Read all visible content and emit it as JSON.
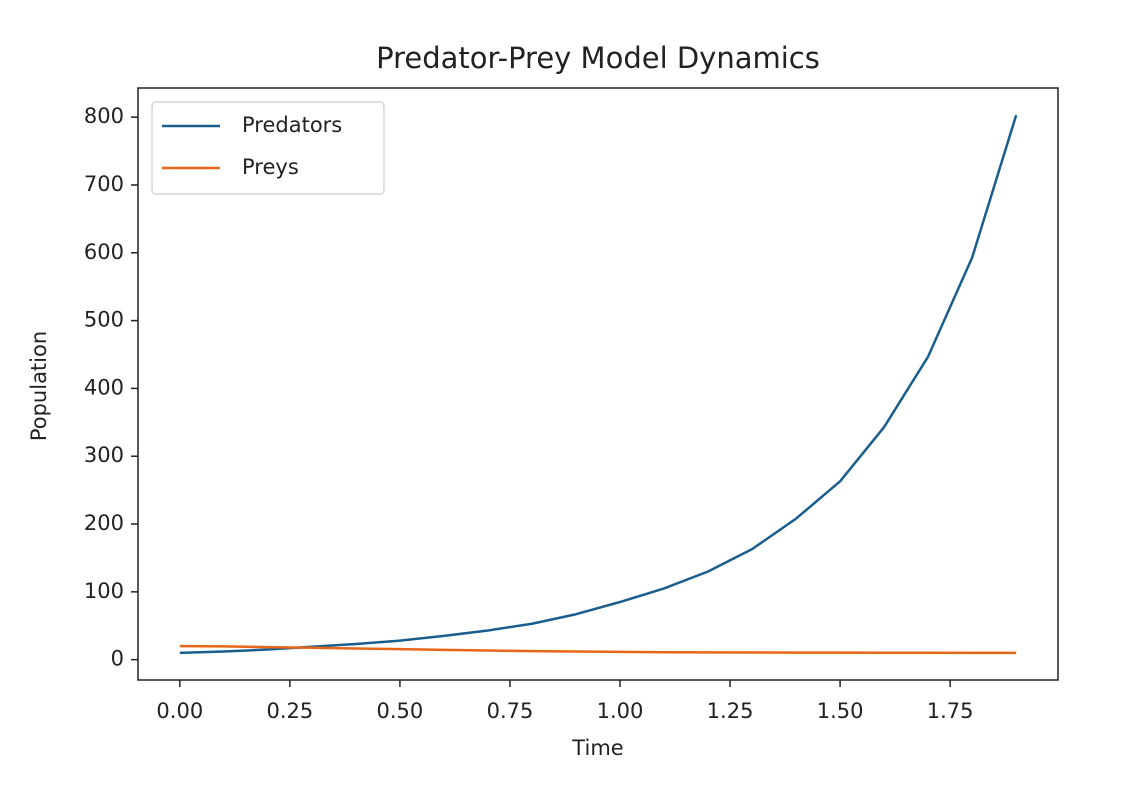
{
  "chart_data": {
    "type": "line",
    "title": "Predator-Prey Model Dynamics",
    "x_label": "Time",
    "y_label": "Population",
    "x": [
      0.0,
      0.1,
      0.2,
      0.3,
      0.4,
      0.5,
      0.6,
      0.7,
      0.8,
      0.9,
      1.0,
      1.1,
      1.2,
      1.3,
      1.4,
      1.5,
      1.6,
      1.7,
      1.8,
      1.9
    ],
    "series": [
      {
        "name": "Predators",
        "color": "#1a5e8e",
        "values": [
          10,
          12,
          15,
          19,
          23,
          28,
          35,
          43,
          53,
          67,
          85,
          105,
          130,
          163,
          208,
          263,
          343,
          447,
          593,
          803
        ]
      },
      {
        "name": "Preys",
        "color": "#e8661a",
        "values": [
          20,
          19.5,
          18.5,
          17.5,
          16.5,
          15.5,
          14.5,
          13.5,
          12.5,
          12,
          11.5,
          11,
          10.8,
          10.6,
          10.4,
          10.3,
          10.2,
          10.1,
          10,
          10
        ]
      }
    ],
    "xlim": [
      -0.095,
      1.995
    ],
    "xticks": [
      {
        "value": 0,
        "label": "0.00"
      },
      {
        "value": 0.25,
        "label": "0.25"
      },
      {
        "value": 0.5,
        "label": "0.50"
      },
      {
        "value": 0.75,
        "label": "0.75"
      },
      {
        "value": 1,
        "label": "1.00"
      },
      {
        "value": 1.25,
        "label": "1.25"
      },
      {
        "value": 1.5,
        "label": "1.50"
      },
      {
        "value": 1.75,
        "label": "1.75"
      }
    ],
    "ylim": [
      -30,
      843
    ],
    "yticks": [
      0,
      100,
      200,
      300,
      400,
      500,
      600,
      700,
      800
    ],
    "grid": false,
    "legend": "upper left"
  }
}
